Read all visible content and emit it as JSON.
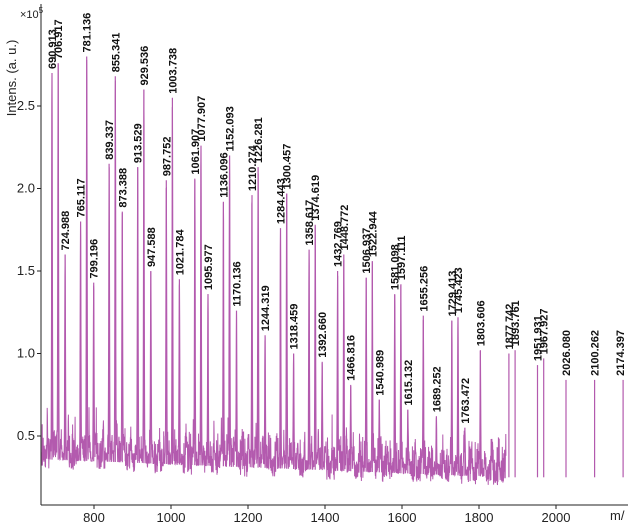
{
  "chart_data": {
    "type": "line",
    "title": "",
    "ylabel": "Intens. (a. u.)",
    "y_multiplier": "×10",
    "y_multiplier_exp": "5",
    "xlabel": "m/",
    "xlim": [
      660,
      1870
    ],
    "ylim": [
      0.18,
      2.9
    ],
    "log_scale": false,
    "grid": false,
    "legend": "none",
    "x_ticks": [
      800,
      1000,
      1200,
      1400,
      1600,
      1800,
      2000
    ],
    "y_ticks": [
      0.5,
      1.0,
      1.5,
      2.0,
      2.5
    ],
    "colors": {
      "series": "#b35aae",
      "axis": "#222222",
      "text": "#111111"
    },
    "peaks": [
      {
        "x": 690.913,
        "y": 2.7,
        "label": "690.913"
      },
      {
        "x": 706.917,
        "y": 2.76,
        "label": "706.917"
      },
      {
        "x": 724.988,
        "y": 1.6,
        "label": "724.988"
      },
      {
        "x": 765.117,
        "y": 1.8,
        "label": "765.117"
      },
      {
        "x": 781.136,
        "y": 2.8,
        "label": "781.136"
      },
      {
        "x": 799.196,
        "y": 1.43,
        "label": "799.196"
      },
      {
        "x": 839.337,
        "y": 2.15,
        "label": "839.337"
      },
      {
        "x": 855.341,
        "y": 2.68,
        "label": "855.341"
      },
      {
        "x": 873.388,
        "y": 1.86,
        "label": "873.388"
      },
      {
        "x": 913.529,
        "y": 2.13,
        "label": "913.529"
      },
      {
        "x": 929.536,
        "y": 2.6,
        "label": "929.536"
      },
      {
        "x": 947.588,
        "y": 1.5,
        "label": "947.588"
      },
      {
        "x": 987.752,
        "y": 2.05,
        "label": "987.752"
      },
      {
        "x": 1003.738,
        "y": 2.55,
        "label": "1003.738"
      },
      {
        "x": 1021.784,
        "y": 1.45,
        "label": "1021.784"
      },
      {
        "x": 1061.907,
        "y": 2.06,
        "label": "1061.907"
      },
      {
        "x": 1077.907,
        "y": 2.26,
        "label": "1077.907"
      },
      {
        "x": 1095.977,
        "y": 1.36,
        "label": "1095.977"
      },
      {
        "x": 1136.096,
        "y": 1.92,
        "label": "1136.096"
      },
      {
        "x": 1152.093,
        "y": 2.2,
        "label": "1152.093"
      },
      {
        "x": 1170.136,
        "y": 1.26,
        "label": "1170.136"
      },
      {
        "x": 1210.274,
        "y": 1.96,
        "label": "1210.274"
      },
      {
        "x": 1226.281,
        "y": 2.13,
        "label": "1226.281"
      },
      {
        "x": 1244.319,
        "y": 1.11,
        "label": "1244.319"
      },
      {
        "x": 1284.443,
        "y": 1.76,
        "label": "1284.443"
      },
      {
        "x": 1300.457,
        "y": 1.97,
        "label": "1300.457"
      },
      {
        "x": 1318.459,
        "y": 1.0,
        "label": "1318.459"
      },
      {
        "x": 1358.617,
        "y": 1.63,
        "label": "1358.617"
      },
      {
        "x": 1374.619,
        "y": 1.78,
        "label": "1374.619"
      },
      {
        "x": 1392.66,
        "y": 0.95,
        "label": "1392.660"
      },
      {
        "x": 1432.769,
        "y": 1.5,
        "label": "1432.769"
      },
      {
        "x": 1448.772,
        "y": 1.6,
        "label": "1448.772"
      },
      {
        "x": 1466.816,
        "y": 0.81,
        "label": "1466.816"
      },
      {
        "x": 1506.937,
        "y": 1.46,
        "label": "1506.937"
      },
      {
        "x": 1522.944,
        "y": 1.56,
        "label": "1522.944"
      },
      {
        "x": 1540.989,
        "y": 0.72,
        "label": "1540.989"
      },
      {
        "x": 1581.098,
        "y": 1.36,
        "label": "1581.098"
      },
      {
        "x": 1597.111,
        "y": 1.42,
        "label": "1597.111"
      },
      {
        "x": 1615.132,
        "y": 0.66,
        "label": "1615.132"
      },
      {
        "x": 1655.256,
        "y": 1.23,
        "label": "1655.256"
      },
      {
        "x": 1689.252,
        "y": 0.62,
        "label": "1689.252"
      },
      {
        "x": 1729.413,
        "y": 1.2,
        "label": "1729.413"
      },
      {
        "x": 1745.423,
        "y": 1.22,
        "label": "1745.423"
      },
      {
        "x": 1763.472,
        "y": 0.55,
        "label": "1763.472"
      },
      {
        "x": 1803.606,
        "y": 1.02,
        "label": "1803.606"
      },
      {
        "x": 1877.742,
        "y": 1.0,
        "label": "1877.742"
      },
      {
        "x": 1893.761,
        "y": 1.02,
        "label": "1893.761"
      },
      {
        "x": 1951.931,
        "y": 0.93,
        "label": "1951.931"
      },
      {
        "x": 1967.927,
        "y": 0.97,
        "label": "1967.927"
      },
      {
        "x": 2026.08,
        "y": 0.84,
        "label": "2026.080"
      },
      {
        "x": 2100.262,
        "y": 0.84,
        "label": "2100.262"
      },
      {
        "x": 2174.397,
        "y": 0.84,
        "label": "2174.397"
      }
    ]
  }
}
